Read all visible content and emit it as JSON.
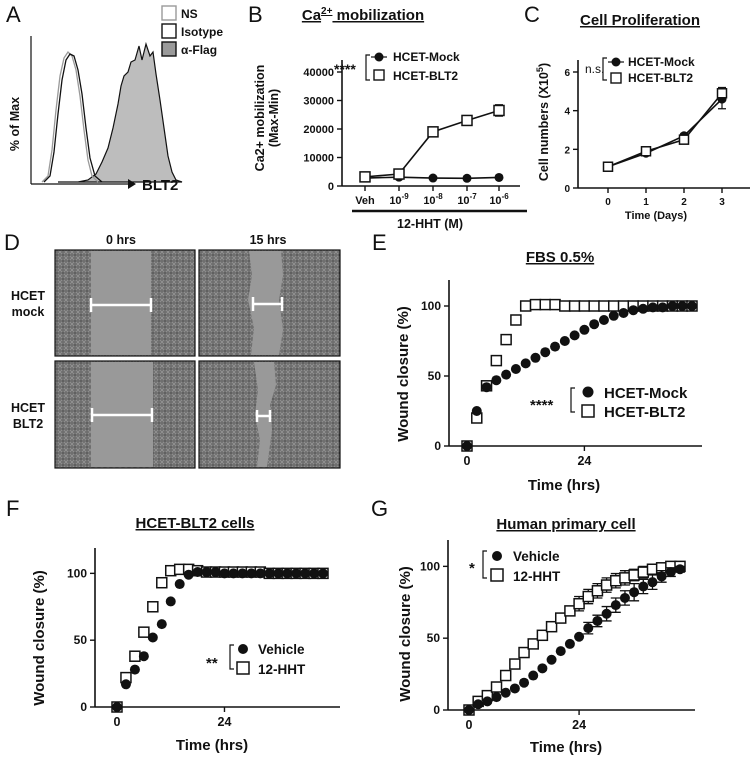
{
  "panel_letters": [
    "A",
    "B",
    "C",
    "D",
    "E",
    "F",
    "G"
  ],
  "colors": {
    "ink": "#111111",
    "histogram_fill": "#bdbdbd",
    "ns_line": "#9a9a9a",
    "micrograph_bg": "#7d7d7d",
    "gap": "#999999"
  },
  "panelA": {
    "ylabel": "% of Max",
    "xlabel": "BLT2",
    "legend": {
      "ns": "NS",
      "isotype": "Isotype",
      "flag": "α-Flag"
    }
  },
  "panelD": {
    "col_labels": [
      "0 hrs",
      "15 hrs"
    ],
    "row_labels": [
      [
        "HCET",
        "mock"
      ],
      [
        "HCET",
        "BLT2"
      ]
    ],
    "gap_widths_relative": [
      [
        1.0,
        0.52
      ],
      [
        1.0,
        0.26
      ]
    ]
  },
  "chart_data": [
    {
      "id": "B",
      "type": "line",
      "title": "Ca2+ mobilization",
      "title_base": "Ca",
      "title_sup": "2+",
      "title_rest": " mobilization",
      "ylabel_line1": "Ca2+ mobilization",
      "ylabel_line2": "(Max-Min)",
      "xlabel": "12-HHT  (M)",
      "categories": [
        "Veh",
        "10-9",
        "10-8",
        "10-7",
        "10-6"
      ],
      "tick_base": "10",
      "tick_exps": [
        "-9",
        "-8",
        "-7",
        "-6"
      ],
      "ylim": [
        0,
        40000
      ],
      "yticks": [
        "0",
        "10000",
        "20000",
        "30000",
        "40000"
      ],
      "ytick_values": [
        0,
        10000,
        20000,
        30000,
        40000
      ],
      "significance": "****",
      "series": [
        {
          "name": "HCET-Mock",
          "marker": "filled-circle",
          "values": [
            2800,
            3100,
            2800,
            2700,
            3000
          ],
          "errors": [
            0,
            0,
            0,
            0,
            0
          ]
        },
        {
          "name": "HCET-BLT2",
          "marker": "open-square",
          "values": [
            3200,
            4200,
            19000,
            23000,
            26500
          ],
          "errors": [
            300,
            400,
            1500,
            1000,
            2000
          ]
        }
      ]
    },
    {
      "id": "C",
      "type": "line",
      "title": "Cell Proliferation",
      "ylabel": "Cell numbers (X10",
      "ylabel_sup": "5",
      "ylabel_end": ")",
      "xlabel": "Time (Days)",
      "x": [
        0,
        1,
        2,
        3
      ],
      "xticks": [
        "0",
        "1",
        "2",
        "3"
      ],
      "ylim": [
        0,
        6
      ],
      "yticks": [
        "0",
        "2",
        "4",
        "6"
      ],
      "ytick_values": [
        0,
        2,
        4,
        6
      ],
      "significance": "n.s.",
      "series": [
        {
          "name": "HCET-Mock",
          "marker": "filled-circle",
          "values": [
            1.1,
            1.8,
            2.7,
            4.6
          ],
          "errors": [
            0,
            0,
            0.1,
            0.5
          ]
        },
        {
          "name": "HCET-BLT2",
          "marker": "open-square",
          "values": [
            1.1,
            1.9,
            2.5,
            4.9
          ],
          "errors": [
            0,
            0.1,
            0.1,
            0.3
          ]
        }
      ]
    },
    {
      "id": "E",
      "type": "scatter",
      "title": "FBS 0.5%",
      "ylabel": "Wound closure (%)",
      "xlabel": "Time (hrs)",
      "xticks": [
        "0",
        "24"
      ],
      "xtick_values": [
        0,
        24
      ],
      "xlim": [
        -2,
        50
      ],
      "ylim": [
        0,
        110
      ],
      "yticks": [
        "0",
        "50",
        "100"
      ],
      "ytick_values": [
        0,
        50,
        100
      ],
      "significance": "****",
      "series": [
        {
          "name": "HCET-Mock",
          "marker": "filled-circle",
          "x": [
            0,
            2,
            4,
            6,
            8,
            10,
            12,
            14,
            16,
            18,
            20,
            22,
            24,
            26,
            28,
            30,
            32,
            34,
            36,
            38,
            40,
            42,
            44,
            46
          ],
          "values": [
            0,
            25,
            42,
            47,
            51,
            55,
            59,
            63,
            67,
            71,
            75,
            79,
            83,
            87,
            90,
            93,
            95,
            97,
            98,
            99,
            99,
            100,
            100,
            100
          ]
        },
        {
          "name": "HCET-BLT2",
          "marker": "open-square",
          "x": [
            0,
            2,
            4,
            6,
            8,
            10,
            12,
            14,
            16,
            18,
            20,
            22,
            24,
            26,
            28,
            30,
            32,
            34,
            36,
            38,
            40,
            42,
            44,
            46
          ],
          "values": [
            0,
            20,
            43,
            61,
            76,
            90,
            100,
            101,
            101,
            101,
            100,
            100,
            100,
            100,
            100,
            100,
            100,
            100,
            100,
            100,
            100,
            100,
            100,
            100
          ]
        }
      ]
    },
    {
      "id": "F",
      "type": "scatter",
      "title": "HCET-BLT2 cells",
      "ylabel": "Wound closure (%)",
      "xlabel": "Time (hrs)",
      "xticks": [
        "0",
        "24"
      ],
      "xtick_values": [
        0,
        24
      ],
      "xlim": [
        -2,
        50
      ],
      "ylim": [
        0,
        110
      ],
      "yticks": [
        "0",
        "50",
        "100"
      ],
      "ytick_values": [
        0,
        50,
        100
      ],
      "significance": "**",
      "series": [
        {
          "name": "Vehicle",
          "marker": "filled-circle",
          "x": [
            0,
            2,
            4,
            6,
            8,
            10,
            12,
            14,
            16,
            18,
            20,
            22,
            24,
            26,
            28,
            30,
            32,
            34,
            36,
            38,
            40,
            42,
            44,
            46
          ],
          "values": [
            0,
            17,
            28,
            38,
            52,
            62,
            79,
            92,
            99,
            101,
            101,
            101,
            100,
            100,
            100,
            100,
            100,
            100,
            100,
            100,
            100,
            100,
            100,
            100
          ]
        },
        {
          "name": "12-HHT",
          "marker": "open-square",
          "x": [
            0,
            2,
            4,
            6,
            8,
            10,
            12,
            14,
            16,
            18,
            20,
            22,
            24,
            26,
            28,
            30,
            32,
            34,
            36,
            38,
            40,
            42,
            44,
            46
          ],
          "values": [
            0,
            22,
            38,
            56,
            75,
            93,
            102,
            103,
            103,
            102,
            101,
            101,
            101,
            101,
            101,
            101,
            101,
            100,
            100,
            100,
            100,
            100,
            100,
            100
          ]
        }
      ]
    },
    {
      "id": "G",
      "type": "scatter",
      "title": "Human primary cell",
      "ylabel": "Wound closure (%)",
      "xlabel": "Time (hrs)",
      "xticks": [
        "0",
        "24"
      ],
      "xtick_values": [
        0,
        24
      ],
      "xlim": [
        -2,
        50
      ],
      "ylim": [
        0,
        110
      ],
      "yticks": [
        "0",
        "50",
        "100"
      ],
      "ytick_values": [
        0,
        50,
        100
      ],
      "significance": "*",
      "series": [
        {
          "name": "Vehicle",
          "marker": "filled-circle",
          "x": [
            0,
            2,
            4,
            6,
            8,
            10,
            12,
            14,
            16,
            18,
            20,
            22,
            24,
            26,
            28,
            30,
            32,
            34,
            36,
            38,
            40,
            42,
            44,
            46
          ],
          "values": [
            0,
            4,
            6,
            9,
            12,
            15,
            19,
            24,
            29,
            35,
            41,
            46,
            51,
            57,
            62,
            67,
            73,
            78,
            82,
            86,
            89,
            93,
            96,
            98
          ],
          "errors": [
            0,
            0,
            0,
            0,
            0,
            0,
            0,
            0,
            0,
            0,
            0,
            0,
            0,
            4,
            4,
            5,
            5,
            5,
            6,
            5,
            5,
            4,
            3,
            2
          ]
        },
        {
          "name": "12-HHT",
          "marker": "open-square",
          "x": [
            0,
            2,
            4,
            6,
            8,
            10,
            12,
            14,
            16,
            18,
            20,
            22,
            24,
            26,
            28,
            30,
            32,
            34,
            36,
            38,
            40,
            42,
            44,
            46
          ],
          "values": [
            0,
            6,
            10,
            16,
            24,
            32,
            40,
            46,
            52,
            58,
            64,
            69,
            74,
            79,
            83,
            87,
            90,
            92,
            94,
            96,
            98,
            99,
            100,
            100
          ],
          "errors": [
            0,
            0,
            0,
            0,
            0,
            0,
            0,
            0,
            0,
            0,
            0,
            0,
            5,
            5,
            5,
            5,
            5,
            5,
            4,
            4,
            3,
            2,
            2,
            0
          ]
        }
      ]
    }
  ]
}
